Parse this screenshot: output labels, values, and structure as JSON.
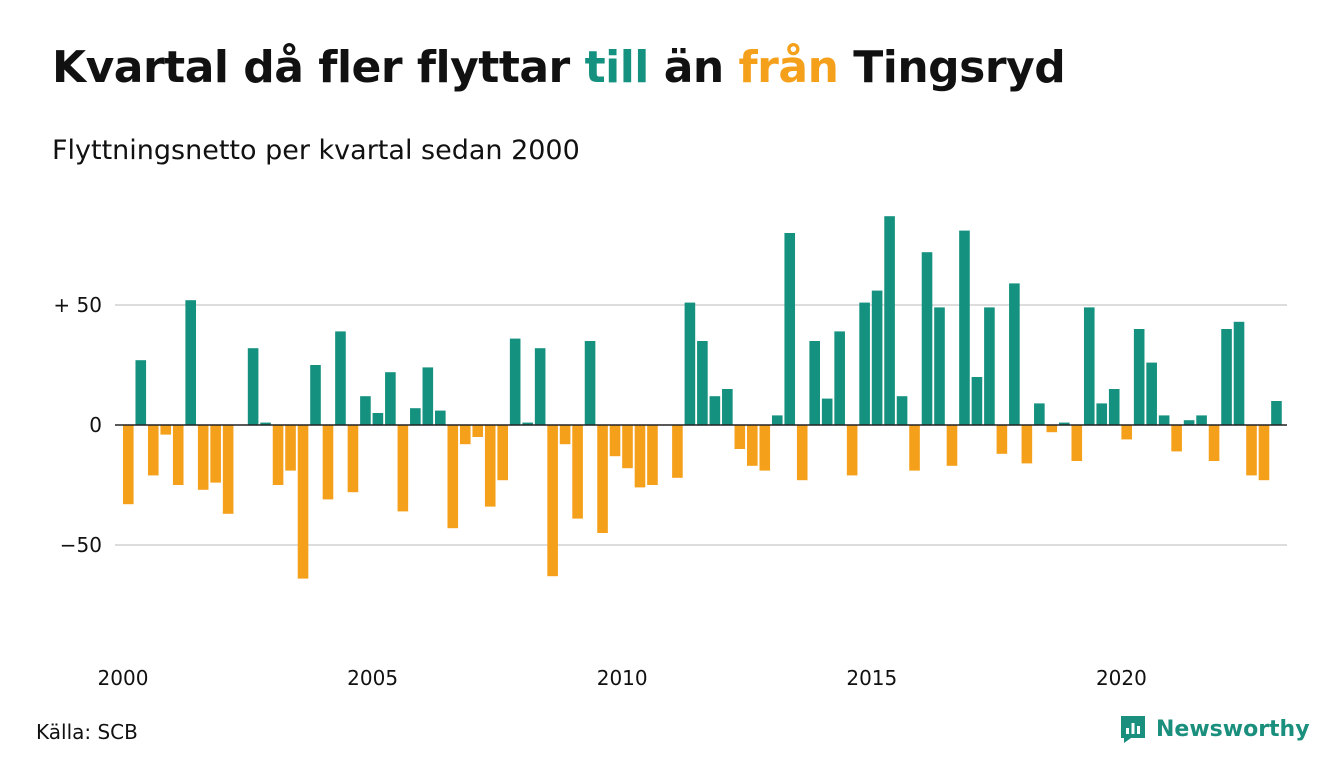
{
  "header": {
    "title_part1": "Kvartal då fler flyttar",
    "title_pos": "till",
    "title_part2": "än",
    "title_neg": "från",
    "title_part3": "Tingsryd",
    "subtitle": "Flyttningsnetto per kvartal sedan 2000"
  },
  "footer": {
    "source": "Källa: SCB",
    "logo_text": "Newsworthy"
  },
  "colors": {
    "positive": "#14917f",
    "negative": "#f5a01a",
    "grid": "#dddddd",
    "zero_line": "#222222"
  },
  "chart_data": {
    "type": "bar",
    "title": "Kvartal då fler flyttar till än från Tingsryd",
    "subtitle": "Flyttningsnetto per kvartal sedan 2000",
    "x_start": "2000 Q1",
    "x_ticks": [
      "2000",
      "2005",
      "2010",
      "2015",
      "2020"
    ],
    "y_ticks": [
      {
        "value": 50,
        "label": "+ 50"
      },
      {
        "value": 0,
        "label": "0"
      },
      {
        "value": -50,
        "label": "−50"
      }
    ],
    "ylim": [
      -80,
      90
    ],
    "grid": true,
    "legend": "none",
    "values": [
      -33,
      27,
      -21,
      -4,
      -25,
      52,
      -27,
      -24,
      -37,
      0,
      32,
      1,
      -25,
      -19,
      -64,
      25,
      -31,
      39,
      -28,
      12,
      5,
      22,
      -36,
      7,
      24,
      6,
      -43,
      -8,
      -5,
      -34,
      -23,
      36,
      1,
      32,
      -63,
      -8,
      -39,
      35,
      -45,
      -13,
      -18,
      -26,
      -25,
      0,
      -22,
      51,
      35,
      12,
      15,
      -10,
      -17,
      -19,
      4,
      80,
      -23,
      35,
      11,
      39,
      -21,
      51,
      56,
      87,
      12,
      -19,
      72,
      49,
      -17,
      81,
      20,
      49,
      -12,
      59,
      -16,
      9,
      -3,
      1,
      -15,
      49,
      9,
      15,
      -6,
      40,
      26,
      4,
      -11,
      2,
      4,
      -15,
      40,
      43,
      -21,
      -23,
      10
    ]
  }
}
